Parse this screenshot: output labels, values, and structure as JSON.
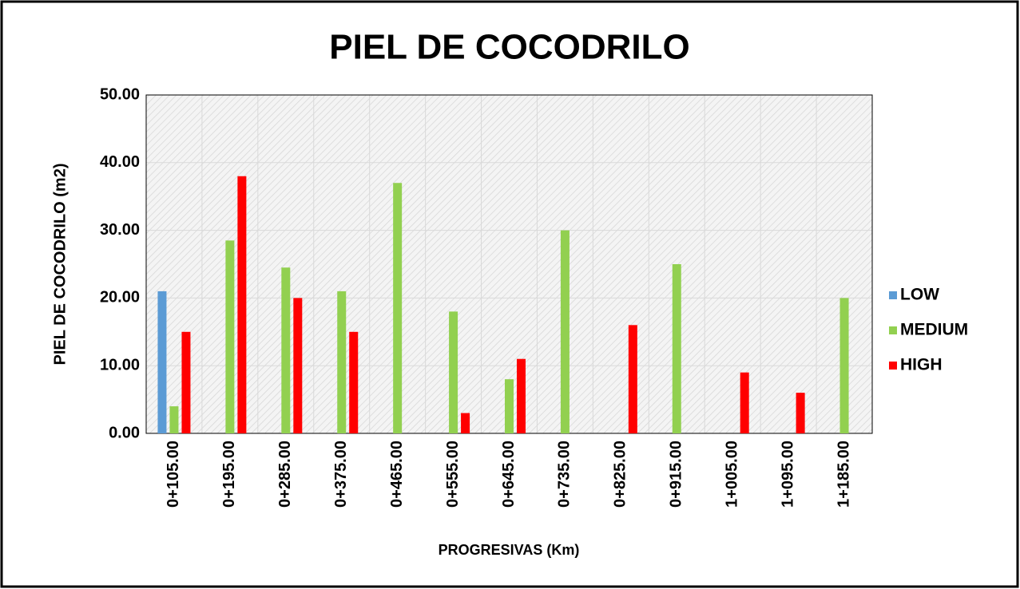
{
  "chart_data": {
    "type": "bar",
    "title": "PIEL DE COCODRILO",
    "xlabel": "PROGRESIVAS (Km)",
    "ylabel": "PIEL DE COCODRILO (m2)",
    "categories": [
      "0+105.00",
      "0+195.00",
      "0+285.00",
      "0+375.00",
      "0+465.00",
      "0+555.00",
      "0+645.00",
      "0+735.00",
      "0+825.00",
      "0+915.00",
      "1+005.00",
      "1+095.00",
      "1+185.00"
    ],
    "series": [
      {
        "name": "LOW",
        "color": "#5b9bd5",
        "values": [
          21,
          null,
          null,
          null,
          null,
          null,
          null,
          null,
          null,
          null,
          null,
          null,
          null
        ]
      },
      {
        "name": "MEDIUM",
        "color": "#92d050",
        "values": [
          4,
          28.5,
          24.5,
          21,
          37,
          18,
          8,
          30,
          null,
          25,
          null,
          null,
          20
        ]
      },
      {
        "name": "HIGH",
        "color": "#ff0000",
        "values": [
          15,
          38,
          20,
          15,
          null,
          3,
          11,
          null,
          16,
          null,
          9,
          6,
          null
        ]
      }
    ],
    "ylim": [
      0,
      50
    ],
    "yticks": [
      {
        "value": 0,
        "label": "0.00"
      },
      {
        "value": 10,
        "label": "10.00"
      },
      {
        "value": 20,
        "label": "20.00"
      },
      {
        "value": 30,
        "label": "30.00"
      },
      {
        "value": 40,
        "label": "40.00"
      },
      {
        "value": 50,
        "label": "50.00"
      }
    ],
    "grid": true,
    "legend": "right"
  }
}
